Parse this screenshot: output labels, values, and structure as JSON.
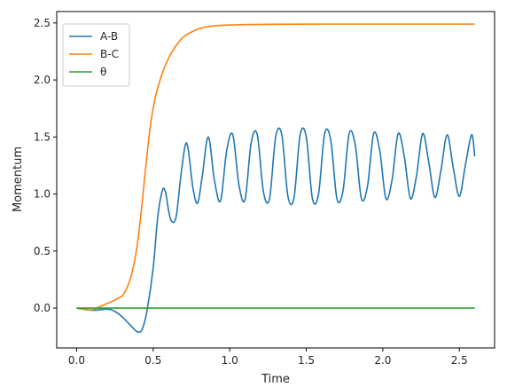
{
  "chart_data": {
    "type": "line",
    "title": "",
    "xlabel": "Time",
    "ylabel": "Momentum",
    "xlim": [
      -0.13,
      2.73
    ],
    "ylim": [
      -0.35,
      2.6
    ],
    "xticks": [
      0.0,
      0.5,
      1.0,
      1.5,
      2.0,
      2.5
    ],
    "xtick_labels": [
      "0.0",
      "0.5",
      "1.0",
      "1.5",
      "2.0",
      "2.5"
    ],
    "yticks": [
      0.0,
      0.5,
      1.0,
      1.5,
      2.0,
      2.5
    ],
    "ytick_labels": [
      "0.0",
      "0.5",
      "1.0",
      "1.5",
      "2.0",
      "2.5"
    ],
    "grid": false,
    "legend_position": "top-left",
    "series": [
      {
        "name": "A-B",
        "color": "#1f77b4",
        "x": [
          0.0,
          0.1,
          0.2,
          0.25,
          0.3,
          0.35,
          0.4,
          0.43,
          0.46,
          0.5,
          0.53,
          0.56,
          0.58,
          0.6,
          0.62,
          0.65,
          0.68,
          0.71,
          0.73,
          0.76,
          0.79,
          0.82,
          0.86,
          0.9,
          0.94,
          0.98,
          1.02,
          1.06,
          1.1,
          1.14,
          1.18,
          1.22,
          1.26,
          1.3,
          1.34,
          1.38,
          1.42,
          1.46,
          1.5,
          1.54,
          1.58,
          1.62,
          1.66,
          1.7,
          1.74,
          1.78,
          1.82,
          1.86,
          1.9,
          1.94,
          1.98,
          2.02,
          2.06,
          2.1,
          2.14,
          2.18,
          2.22,
          2.26,
          2.3,
          2.34,
          2.38,
          2.42,
          2.46,
          2.5,
          2.54,
          2.58,
          2.6
        ],
        "y": [
          0.0,
          -0.02,
          -0.01,
          -0.03,
          -0.08,
          -0.15,
          -0.21,
          -0.18,
          -0.02,
          0.35,
          0.8,
          1.03,
          1.02,
          0.86,
          0.76,
          0.8,
          1.15,
          1.43,
          1.38,
          1.05,
          0.92,
          1.15,
          1.5,
          1.12,
          0.94,
          1.38,
          1.52,
          1.08,
          0.95,
          1.45,
          1.52,
          1.02,
          0.96,
          1.5,
          1.52,
          0.98,
          0.97,
          1.52,
          1.5,
          0.96,
          1.0,
          1.53,
          1.47,
          0.96,
          1.03,
          1.53,
          1.43,
          0.96,
          1.07,
          1.53,
          1.38,
          0.96,
          1.12,
          1.53,
          1.33,
          0.96,
          1.16,
          1.53,
          1.28,
          0.97,
          1.21,
          1.52,
          1.23,
          0.98,
          1.26,
          1.52,
          1.33
        ]
      },
      {
        "name": "B-C",
        "color": "#ff7f0e",
        "x": [
          0.0,
          0.05,
          0.1,
          0.15,
          0.2,
          0.25,
          0.3,
          0.33,
          0.36,
          0.39,
          0.42,
          0.45,
          0.48,
          0.5,
          0.52,
          0.55,
          0.58,
          0.62,
          0.66,
          0.7,
          0.75,
          0.8,
          0.85,
          0.9,
          1.0,
          1.1,
          1.2,
          1.4,
          1.6,
          2.0,
          2.4,
          2.6
        ],
        "y": [
          0.0,
          -0.01,
          -0.015,
          0.01,
          0.04,
          0.07,
          0.11,
          0.18,
          0.3,
          0.5,
          0.82,
          1.22,
          1.58,
          1.75,
          1.88,
          2.02,
          2.13,
          2.24,
          2.32,
          2.38,
          2.42,
          2.45,
          2.465,
          2.475,
          2.482,
          2.486,
          2.488,
          2.489,
          2.49,
          2.49,
          2.49,
          2.49
        ]
      },
      {
        "name": "θ",
        "color": "#2ca02c",
        "x": [
          0.0,
          2.6
        ],
        "y": [
          0.0,
          0.0
        ]
      }
    ]
  }
}
